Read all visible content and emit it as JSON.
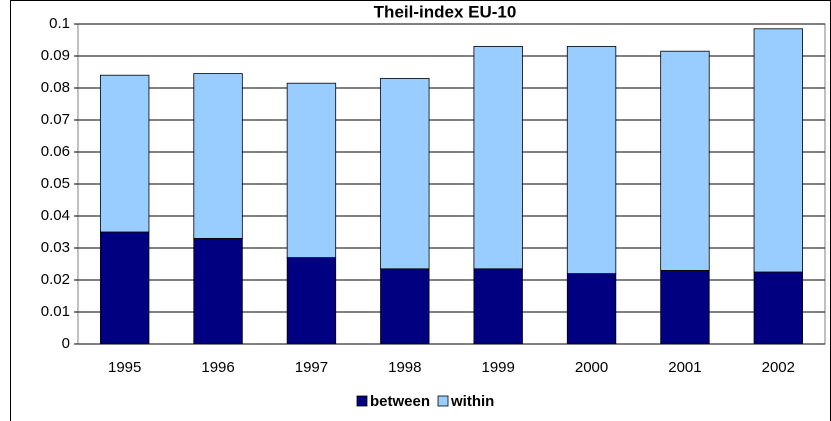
{
  "chart_data": {
    "type": "stacked-bar",
    "title": "Theil-index EU-10",
    "categories": [
      "1995",
      "1996",
      "1997",
      "1998",
      "1999",
      "2000",
      "2001",
      "2002"
    ],
    "series": [
      {
        "name": "between",
        "color": "#000080",
        "values": [
          0.035,
          0.033,
          0.027,
          0.0235,
          0.0235,
          0.022,
          0.023,
          0.0225
        ]
      },
      {
        "name": "within",
        "color": "#99ccff",
        "values": [
          0.049,
          0.0515,
          0.0545,
          0.0595,
          0.0695,
          0.071,
          0.0685,
          0.076
        ]
      }
    ],
    "ylim": [
      0,
      0.1
    ],
    "yticks": [
      0,
      0.01,
      0.02,
      0.03,
      0.04,
      0.05,
      0.06,
      0.07,
      0.08,
      0.09,
      0.1
    ],
    "grid": true,
    "legend": "bottom"
  }
}
